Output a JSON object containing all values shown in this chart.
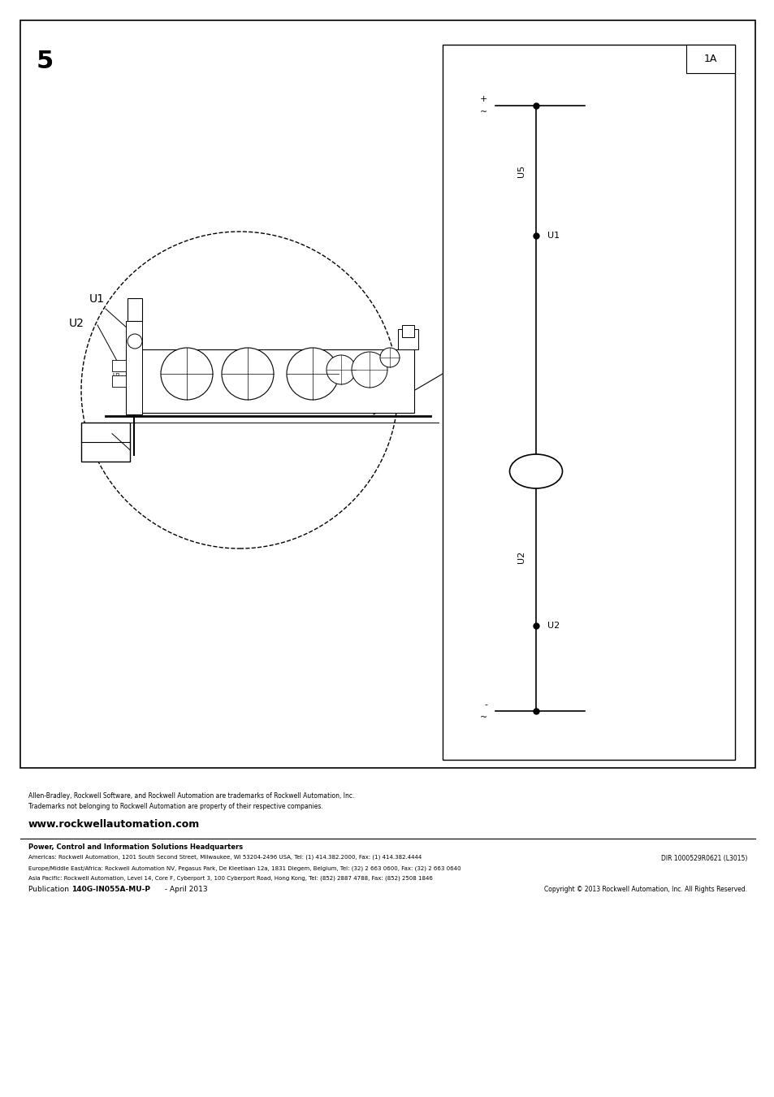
{
  "page_bg": "#ffffff",
  "border_color": "#000000",
  "text_color": "#000000",
  "page_num": "5",
  "diagram_label": "1A",
  "footer_trademark1": "Allen-Bradley, Rockwell Software, and Rockwell Automation are trademarks of Rockwell Automation, Inc.",
  "footer_trademark2": "Trademarks not belonging to Rockwell Automation are property of their respective companies.",
  "footer_url": "www.rockwellautomation.com",
  "footer_hq_bold": "Power, Control and Information Solutions Headquarters",
  "footer_americas": "Americas: Rockwell Automation, 1201 South Second Street, Milwaukee, WI 53204-2496 USA, Tel: (1) 414.382.2000, Fax: (1) 414.382.4444",
  "footer_europe": "Europe/Middle East/Africa: Rockwell Automation NV, Pegasus Park, De Kleetlaan 12a, 1831 Diegem, Belgium, Tel: (32) 2 663 0600, Fax: (32) 2 663 0640",
  "footer_asia": "Asia Pacific: Rockwell Automation, Level 14, Core F, Cyberport 3, 100 Cyberport Road, Hong Kong, Tel: (852) 2887 4788, Fax: (852) 2508 1846",
  "footer_dir": "DIR 1000529R0621 (L3015)",
  "footer_pub_prefix": "Publication ",
  "footer_pub_bold": "140G-IN055A-MU-P",
  "footer_pub_suffix": " - April 2013",
  "footer_copyright": "Copyright © 2013 Rockwell Automation, Inc. All Rights Reserved."
}
